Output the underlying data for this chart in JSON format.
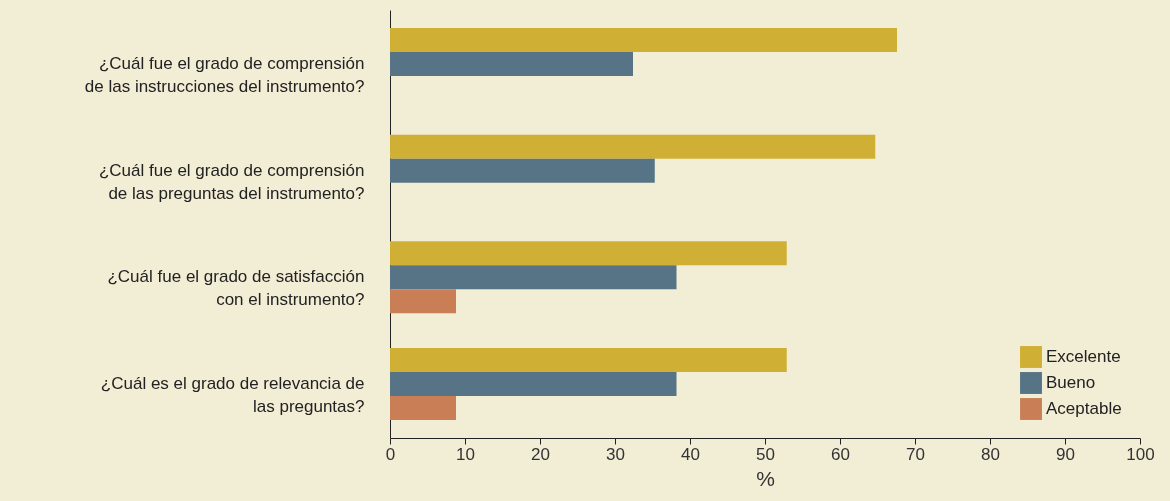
{
  "chart_data": {
    "type": "bar",
    "orientation": "horizontal",
    "xlabel": "%",
    "categories": [
      "¿Cuál fue el grado de comprensión\nde las instrucciones del instrumento?",
      "¿Cuál fue el grado de comprensión\nde las preguntas del instrumento?",
      "¿Cuál fue el grado de satisfacción\ncon el instrumento?",
      "¿Cuál es el grado de relevancia de\nlas preguntas?"
    ],
    "series": [
      {
        "name": "Excelente",
        "color": "#cfb034",
        "values": [
          67.6,
          64.7,
          52.9,
          52.9
        ]
      },
      {
        "name": "Bueno",
        "color": "#567486",
        "values": [
          32.4,
          35.3,
          38.2,
          38.2
        ]
      },
      {
        "name": "Aceptable",
        "color": "#c97e55",
        "values": [
          null,
          null,
          8.8,
          8.8
        ]
      }
    ],
    "xlim": [
      0,
      100
    ],
    "xticks": [
      0,
      10,
      20,
      30,
      40,
      50,
      60,
      70,
      80,
      90,
      100
    ],
    "grid": false,
    "legend": "bottom right"
  }
}
